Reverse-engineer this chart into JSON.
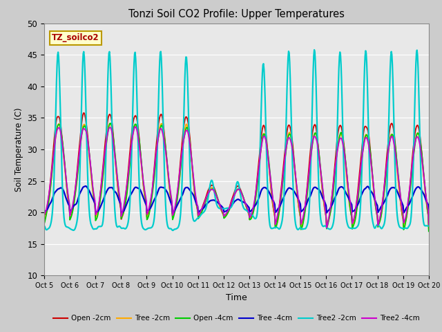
{
  "title": "Tonzi Soil CO2 Profile: Upper Temperatures",
  "xlabel": "Time",
  "ylabel": "Soil Temperature (C)",
  "ylim": [
    10,
    50
  ],
  "n_days": 15,
  "pts_per_day": 48,
  "annotation_text": "TZ_soilco2",
  "annotation_bg": "#ffffcc",
  "annotation_border": "#bb9900",
  "annotation_color": "#aa0000",
  "fig_bg": "#cccccc",
  "plot_bg": "#e8e8e8",
  "grid_color": "#ffffff",
  "colors": [
    "#cc0000",
    "#ffaa00",
    "#00cc00",
    "#0000cc",
    "#00cccc",
    "#cc00cc"
  ],
  "lws": [
    1.3,
    1.3,
    1.3,
    1.6,
    1.6,
    1.3
  ],
  "legend_labels": [
    "Open -2cm",
    "Tree -2cm",
    "Open -4cm",
    "Tree -4cm",
    "Tree2 -2cm",
    "Tree2 -4cm"
  ],
  "yticks": [
    10,
    15,
    20,
    25,
    30,
    35,
    40,
    45,
    50
  ]
}
